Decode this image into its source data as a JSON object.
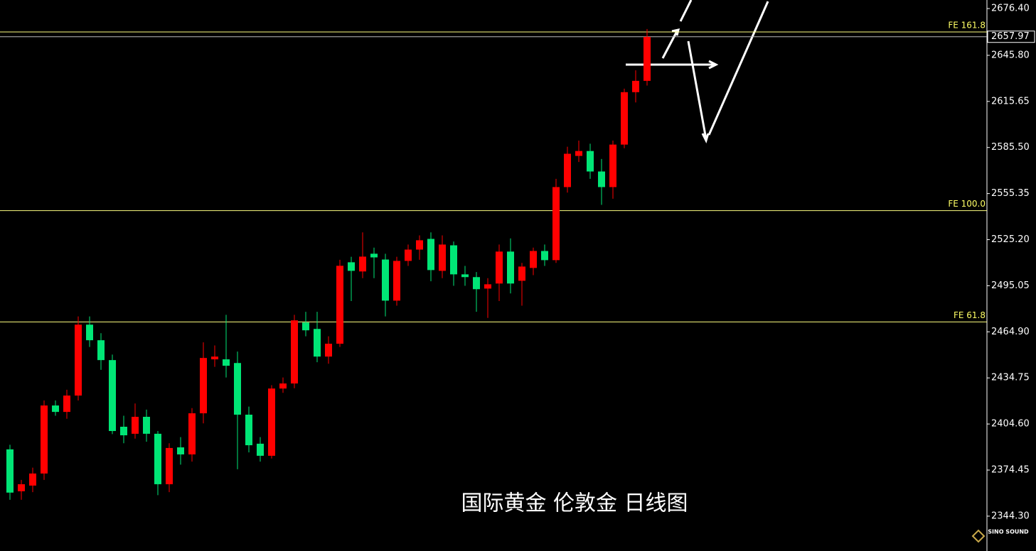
{
  "chart_data": {
    "type": "candlestick",
    "caption": "国际黄金 伦敦金 日线图",
    "watermark": "SINO SOUND",
    "ylim": [
      2321.5,
      2682.0
    ],
    "yticks": [
      {
        "value": 2676.4,
        "label": "2676.40"
      },
      {
        "value": 2645.8,
        "label": "2645.80"
      },
      2615.65,
      {
        "value": 2585.5,
        "label": "2585.50"
      },
      2555.35,
      {
        "value": 2525.2,
        "label": "2525.20"
      },
      2495.05,
      {
        "value": 2464.9,
        "label": "2464.90"
      },
      2434.75,
      {
        "value": 2404.6,
        "label": "2404.60"
      },
      2374.45,
      {
        "value": 2344.3,
        "label": "2344.30"
      }
    ],
    "last_price": 2657.97,
    "levels": [
      {
        "label": "FE 161.8",
        "value": 2661.1
      },
      {
        "label": "FE 100.0",
        "value": 2544.2
      },
      {
        "label": "FE 61.8",
        "value": 2471.4
      }
    ],
    "up_color": "#ff0000",
    "down_color": "#00e676",
    "open": [
      2388.0,
      2360.6,
      2364.3,
      2372.2,
      2416.7,
      2412.5,
      2423.2,
      2469.6,
      2459.4,
      2446.4,
      2402.8,
      2398.2,
      2409.3,
      2398.2,
      2365.2,
      2389.3,
      2384.7,
      2411.6,
      2446.9,
      2446.9,
      2444.5,
      2410.7,
      2391.7,
      2383.8,
      2427.8,
      2431.1,
      2471.0,
      2466.8,
      2448.7,
      2457.1,
      2510.4,
      2504.4,
      2516.0,
      2512.2,
      2485.3,
      2511.3,
      2518.7,
      2525.7,
      2504.8,
      2521.5,
      2502.5,
      2500.7,
      2493.2,
      2496.5,
      2517.4,
      2498.3,
      2506.7,
      2517.8,
      2511.8,
      2559.6,
      2580.0,
      2583.2,
      2569.8,
      2559.6,
      2587.4,
      2621.7,
      2629.1
    ],
    "high": [
      2391,
      2368,
      2376,
      2420,
      2420,
      2427,
      2475,
      2475,
      2464,
      2450,
      2410,
      2418,
      2414,
      2400,
      2392,
      2396,
      2415,
      2458,
      2456,
      2476,
      2452,
      2416,
      2396,
      2430,
      2435,
      2476,
      2478,
      2478,
      2462,
      2512,
      2514,
      2530,
      2520,
      2516,
      2514,
      2522,
      2528,
      2530,
      2528,
      2524,
      2508,
      2504,
      2500,
      2522,
      2526,
      2510,
      2520,
      2522,
      2565,
      2586,
      2590,
      2588,
      2578,
      2590,
      2624,
      2636,
      2663
    ],
    "low": [
      2355,
      2355,
      2360,
      2368,
      2410,
      2408,
      2420,
      2455,
      2440,
      2398,
      2392,
      2395,
      2393,
      2358,
      2360,
      2378,
      2380,
      2405,
      2442,
      2435,
      2375,
      2386,
      2380,
      2382,
      2425,
      2428,
      2462,
      2445,
      2444,
      2455,
      2485,
      2500,
      2500,
      2475,
      2482,
      2508,
      2512,
      2498,
      2500,
      2495,
      2495,
      2478,
      2474,
      2485,
      2490,
      2482,
      2502,
      2508,
      2510,
      2556,
      2576,
      2565,
      2548,
      2552,
      2585,
      2615,
      2626
    ],
    "close": [
      2359.7,
      2365.2,
      2372.2,
      2416.7,
      2412.5,
      2423.2,
      2469.6,
      2459.4,
      2446.4,
      2400.0,
      2397.2,
      2409.3,
      2398.2,
      2365.2,
      2388.9,
      2384.7,
      2411.6,
      2447.8,
      2448.7,
      2442.7,
      2410.7,
      2390.7,
      2383.8,
      2427.8,
      2431.1,
      2472.4,
      2465.9,
      2448.7,
      2457.1,
      2508.1,
      2504.8,
      2514.1,
      2513.6,
      2485.3,
      2511.3,
      2518.7,
      2524.8,
      2505.3,
      2522.0,
      2502.5,
      2500.7,
      2492.8,
      2496.0,
      2517.4,
      2496.5,
      2507.6,
      2517.8,
      2511.8,
      2559.6,
      2581.4,
      2583.2,
      2569.8,
      2559.6,
      2587.4,
      2621.7,
      2629.1,
      2657.9
    ]
  }
}
